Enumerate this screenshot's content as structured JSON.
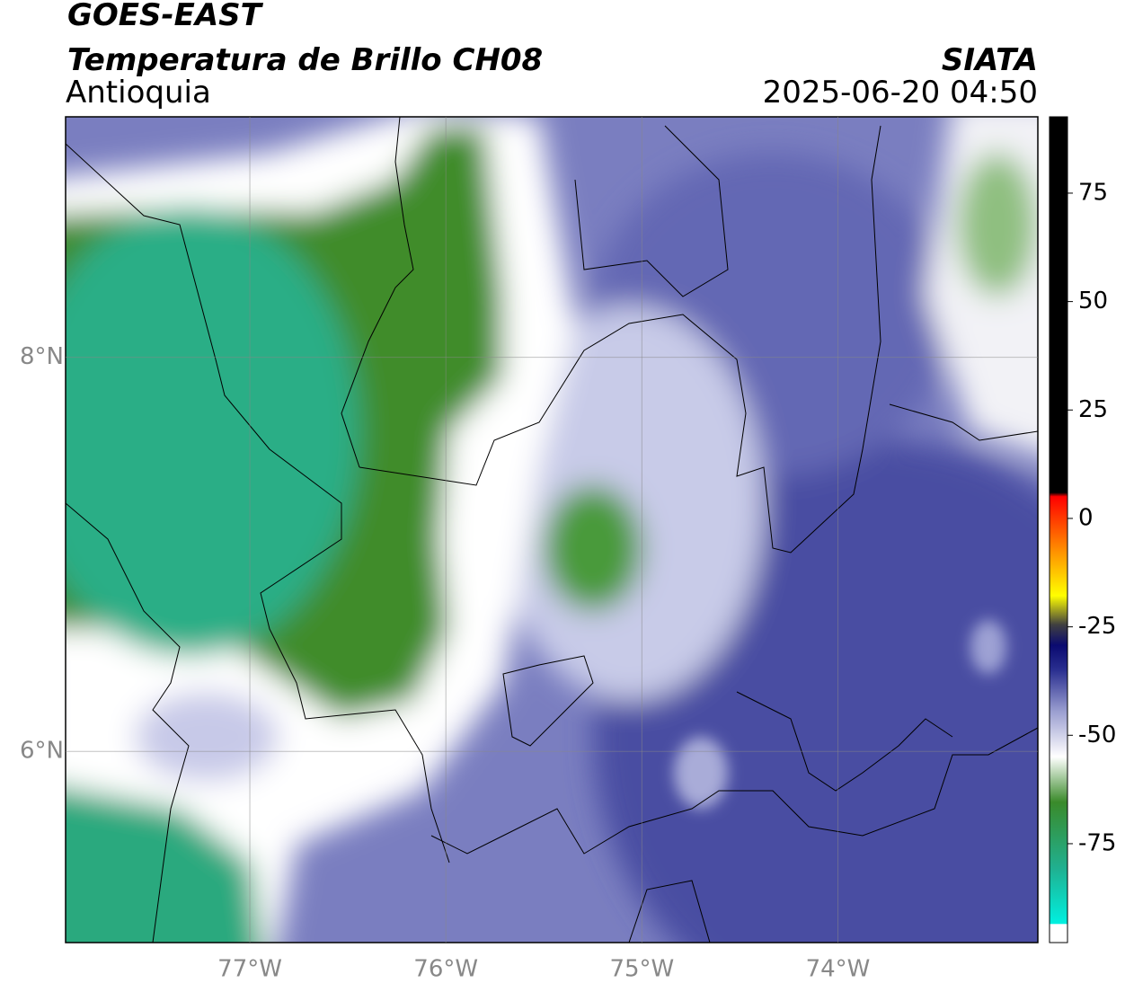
{
  "header": {
    "title": "GOES-EAST",
    "subtitle": "Temperatura de Brillo CH08",
    "region": "Antioquia",
    "source": "SIATA",
    "datetime": "2025-06-20 04:50"
  },
  "map": {
    "lonlim": [
      -77.94,
      -72.98
    ],
    "latlim": [
      5.03,
      9.22
    ],
    "lon_ticks": [
      {
        "value": -77,
        "label": "77°W"
      },
      {
        "value": -76,
        "label": "76°W"
      },
      {
        "value": -75,
        "label": "75°W"
      },
      {
        "value": -74,
        "label": "74°W"
      }
    ],
    "lat_ticks": [
      {
        "value": 8,
        "label": "8°N"
      },
      {
        "value": 6,
        "label": "6°N"
      }
    ]
  },
  "colorbar": {
    "lim": [
      -97.8,
      92.6
    ],
    "ticks": [
      75,
      50,
      25,
      0,
      -25,
      -50,
      -75
    ]
  }
}
